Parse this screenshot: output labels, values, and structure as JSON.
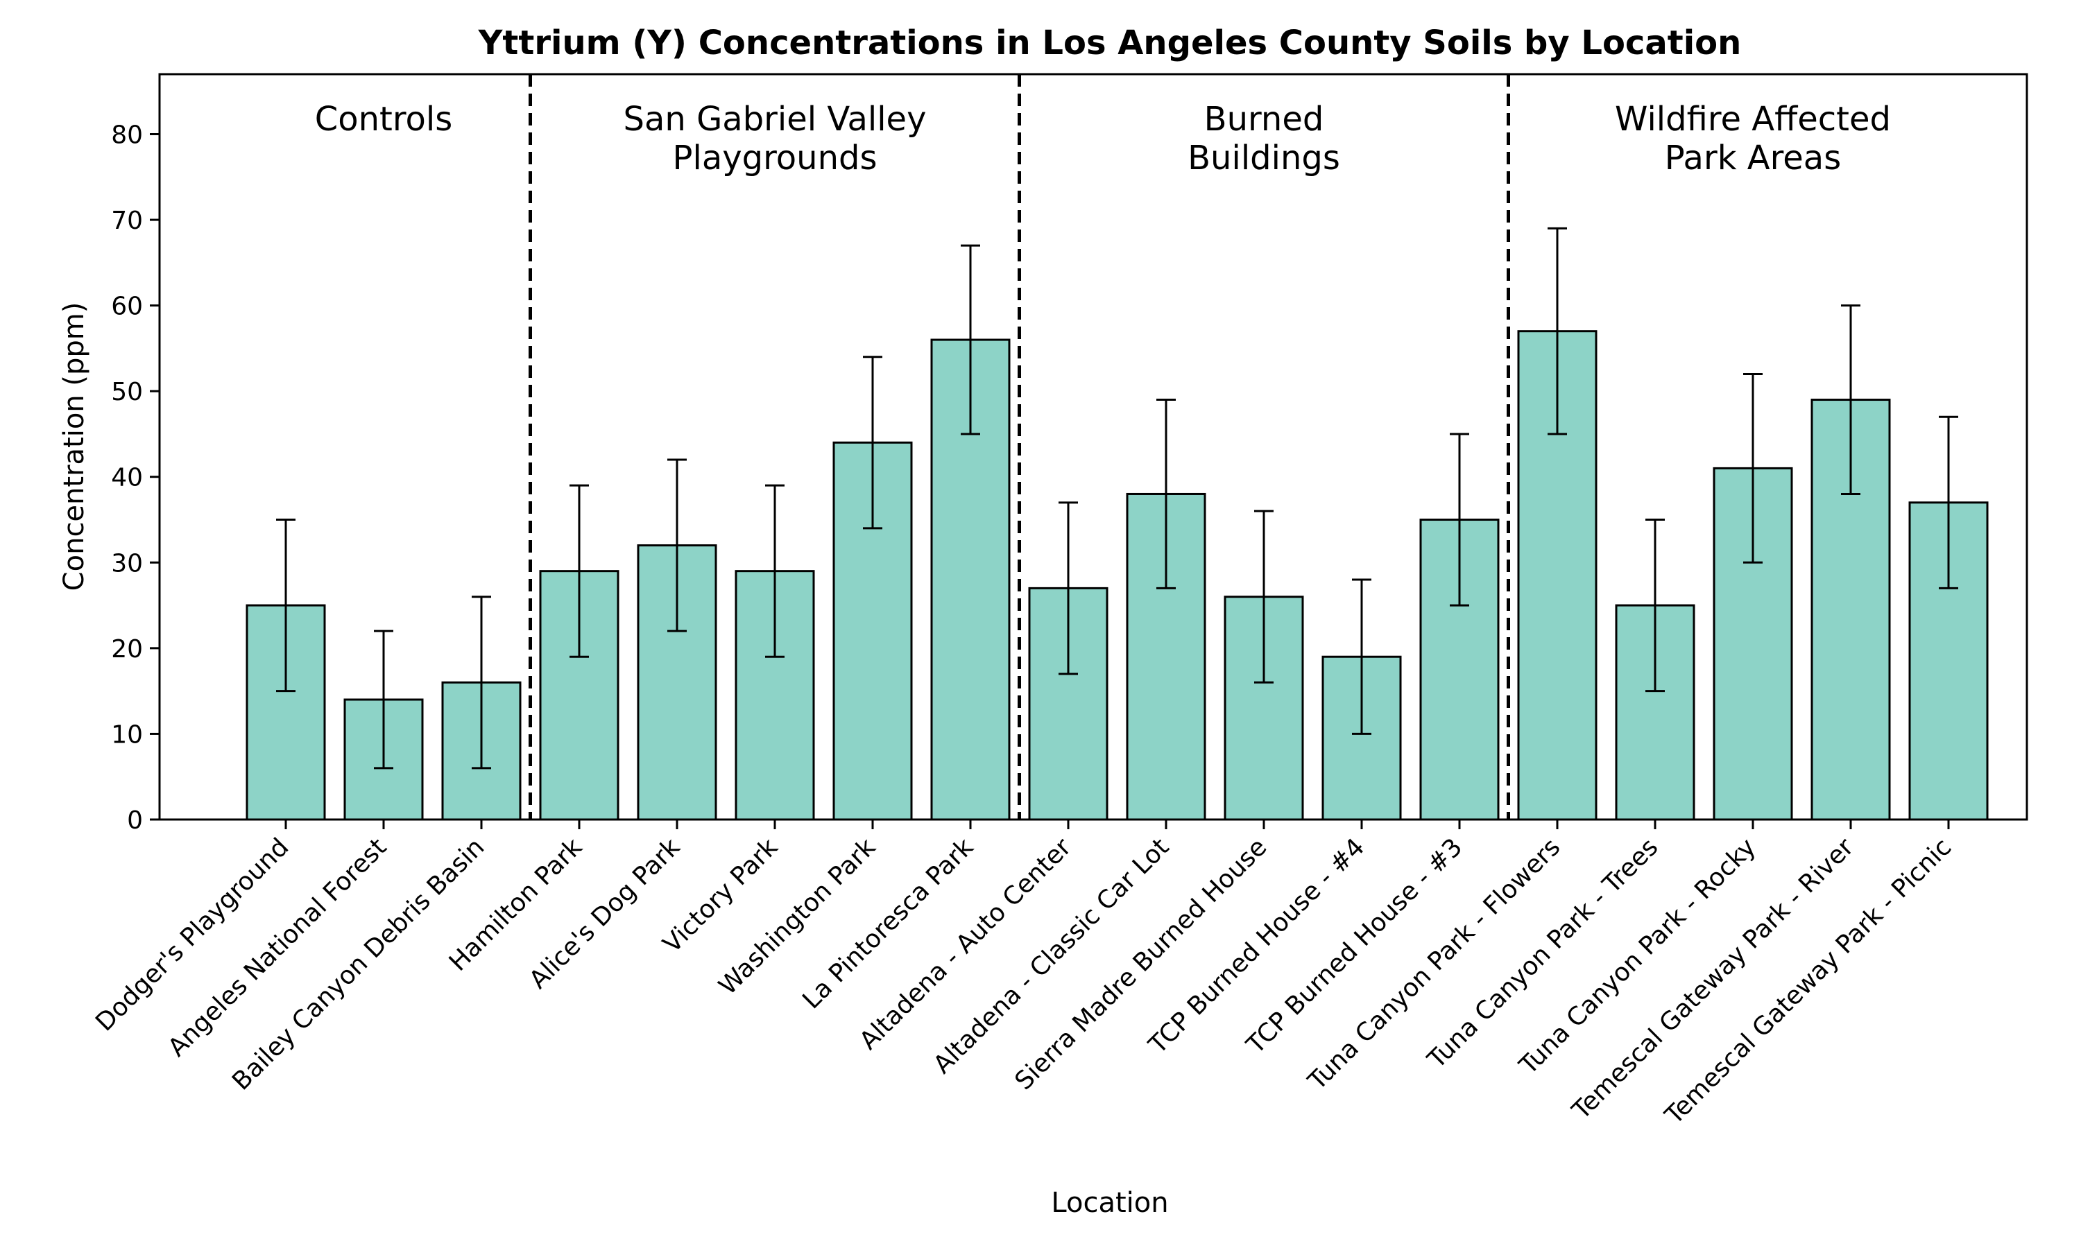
{
  "chart_data": {
    "type": "bar",
    "title": "Yttrium (Y) Concentrations in Los Angeles County Soils by Location",
    "xlabel": "Location",
    "ylabel": "Concentration (ppm)",
    "ylim": [
      0,
      87
    ],
    "yticks": [
      0,
      10,
      20,
      30,
      40,
      50,
      60,
      70,
      80
    ],
    "grid": false,
    "bar_color": "#8dd3c7",
    "edge_color": "#000000",
    "categories": [
      "Dodger's Playground",
      "Angeles National Forest",
      "Bailey Canyon Debris Basin",
      "Hamilton Park",
      "Alice's Dog Park",
      "Victory Park",
      "Washington Park",
      "La Pintoresca Park",
      "Altadena - Auto Center",
      "Altadena - Classic Car Lot",
      "Sierra Madre Burned House",
      "TCP Burned House - #4",
      "TCP Burned House - #3",
      "Tuna Canyon Park - Flowers",
      "Tuna Canyon Park - Trees",
      "Tuna Canyon Park - Rocky",
      "Temescal Gateway Park - River",
      "Temescal Gateway Park - Picnic"
    ],
    "values": [
      25,
      14,
      16,
      29,
      32,
      29,
      44,
      56,
      27,
      38,
      26,
      19,
      35,
      57,
      25,
      41,
      49,
      37
    ],
    "errors": [
      10,
      8,
      10,
      10,
      10,
      10,
      10,
      11,
      10,
      11,
      10,
      9,
      10,
      12,
      10,
      11,
      11,
      10
    ],
    "groups": [
      {
        "lines": [
          "Controls"
        ],
        "start": 0,
        "end": 2
      },
      {
        "lines": [
          "San Gabriel Valley",
          "Playgrounds"
        ],
        "start": 3,
        "end": 7
      },
      {
        "lines": [
          "Burned",
          "Buildings"
        ],
        "start": 8,
        "end": 12
      },
      {
        "lines": [
          "Wildfire Affected",
          "Park Areas"
        ],
        "start": 13,
        "end": 17
      }
    ]
  }
}
